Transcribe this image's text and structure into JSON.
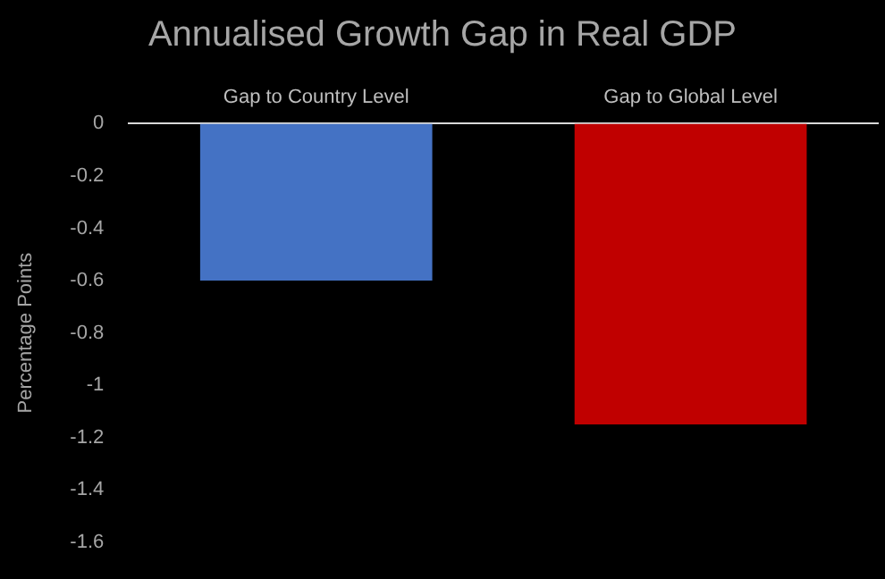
{
  "chart_data": {
    "type": "bar",
    "title": "Annualised Growth Gap in Real GDP",
    "ylabel": "Percentage Points",
    "categories": [
      "Gap to Country Level",
      "Gap to Global Level"
    ],
    "values": [
      -0.6,
      -1.15
    ],
    "colors": [
      "#4472c4",
      "#c00000"
    ],
    "ylim": [
      -1.6,
      0
    ],
    "yticks": [
      0,
      -0.2,
      -0.4,
      -0.6,
      -0.8,
      -1,
      -1.2,
      -1.4,
      -1.6
    ],
    "grid": false,
    "legend": false
  }
}
